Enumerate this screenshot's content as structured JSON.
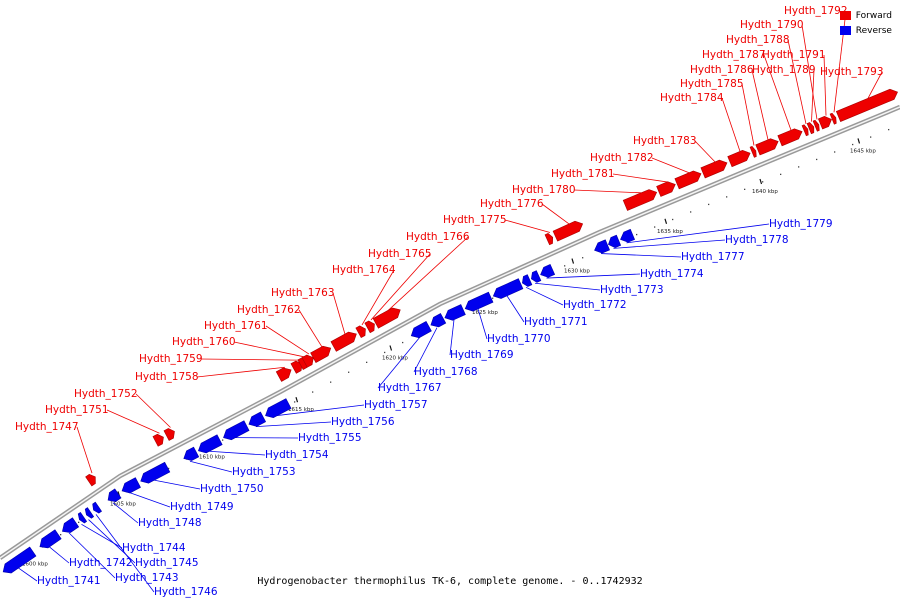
{
  "caption": "Hydrogenobacter thermophilus TK-6, complete genome. - 0..1742932",
  "legend": [
    {
      "label": "Forward",
      "color": "#ee0000"
    },
    {
      "label": "Reverse",
      "color": "#0000ee"
    }
  ],
  "strand_colors": {
    "forward": "#ee0000",
    "reverse": "#0000ee",
    "line": "#ee0000"
  },
  "ticks": [
    "1600 kbp",
    "1605 kbp",
    "1610 kbp",
    "1615 kbp",
    "1620 kbp",
    "1625 kbp",
    "1630 kbp",
    "1635 kbp",
    "1640 kbp",
    "1645 kbp"
  ],
  "genes": {
    "forward": [
      "Hydth_1747",
      "Hydth_1751",
      "Hydth_1752",
      "Hydth_1758",
      "Hydth_1759",
      "Hydth_1760",
      "Hydth_1761",
      "Hydth_1762",
      "Hydth_1763",
      "Hydth_1764",
      "Hydth_1765",
      "Hydth_1766",
      "Hydth_1775",
      "Hydth_1776",
      "Hydth_1780",
      "Hydth_1781",
      "Hydth_1782",
      "Hydth_1783",
      "Hydth_1784",
      "Hydth_1785",
      "Hydth_1786",
      "Hydth_1787",
      "Hydth_1788",
      "Hydth_1789",
      "Hydth_1790",
      "Hydth_1791",
      "Hydth_1792",
      "Hydth_1793"
    ],
    "reverse": [
      "Hydth_1741",
      "Hydth_1742",
      "Hydth_1743",
      "Hydth_1744",
      "Hydth_1745",
      "Hydth_1746",
      "Hydth_1748",
      "Hydth_1749",
      "Hydth_1750",
      "Hydth_1753",
      "Hydth_1754",
      "Hydth_1755",
      "Hydth_1756",
      "Hydth_1757",
      "Hydth_1767",
      "Hydth_1768",
      "Hydth_1769",
      "Hydth_1770",
      "Hydth_1771",
      "Hydth_1772",
      "Hydth_1773",
      "Hydth_1774",
      "Hydth_1777",
      "Hydth_1778",
      "Hydth_1779"
    ]
  }
}
